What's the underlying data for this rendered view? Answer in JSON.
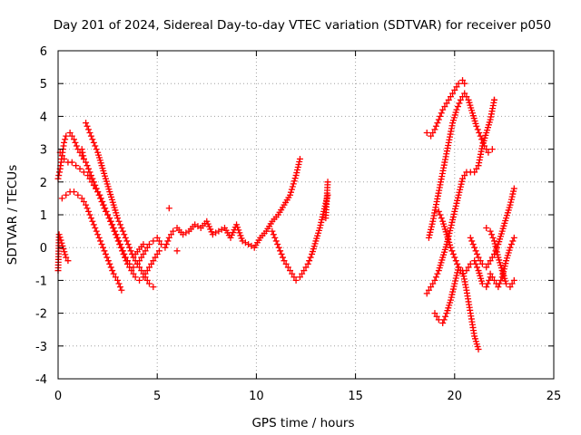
{
  "chart_data": {
    "type": "scatter",
    "title": "Day 201 of 2024, Sidereal Day-to-day VTEC variation (SDTVAR) for receiver p050",
    "xlabel": "GPS time / hours",
    "ylabel": "SDTVAR / TECUs",
    "xlim": [
      0,
      25
    ],
    "ylim": [
      -4,
      6
    ],
    "xticks": [
      "0",
      "5",
      "10",
      "15",
      "20",
      "25"
    ],
    "yticks": [
      "-4",
      "-3",
      "-2",
      "-1",
      "0",
      "1",
      "2",
      "3",
      "4",
      "5",
      "6"
    ],
    "grid": true,
    "marker": "+",
    "color": "#ff0000",
    "series": [
      {
        "name": "s1",
        "x": [
          0.0,
          0.1,
          0.2,
          0.3,
          0.4,
          0.6,
          0.8,
          1.0,
          1.2,
          1.4,
          1.6,
          1.8,
          2.0,
          2.2,
          2.4,
          2.6,
          2.8,
          3.0,
          3.2,
          3.4,
          3.6,
          3.8,
          4.0,
          4.2,
          4.4,
          4.6,
          4.8,
          5.0,
          5.2,
          5.4,
          5.6,
          5.8,
          6.0,
          6.3,
          6.6,
          6.9,
          7.2,
          7.5,
          7.8,
          8.1,
          8.4,
          8.7,
          9.0,
          9.3,
          9.6,
          9.9,
          10.2,
          10.5,
          10.8,
          11.1,
          11.4,
          11.7,
          12.0,
          12.2
        ],
        "y": [
          2.1,
          2.4,
          2.8,
          3.2,
          3.4,
          3.5,
          3.3,
          3.0,
          2.8,
          2.6,
          2.3,
          2.0,
          1.7,
          1.4,
          1.1,
          0.9,
          0.6,
          0.3,
          0.0,
          -0.3,
          -0.5,
          -0.6,
          -0.5,
          -0.3,
          -0.1,
          0.1,
          0.2,
          0.3,
          0.1,
          0.0,
          0.3,
          0.5,
          0.6,
          0.4,
          0.5,
          0.7,
          0.6,
          0.8,
          0.4,
          0.5,
          0.6,
          0.3,
          0.7,
          0.2,
          0.1,
          0.0,
          0.3,
          0.5,
          0.8,
          1.0,
          1.3,
          1.6,
          2.2,
          2.7
        ]
      },
      {
        "name": "s2",
        "x": [
          0.1,
          0.3,
          0.5,
          0.7,
          0.9,
          1.1,
          1.3,
          1.5,
          1.7,
          1.9,
          2.1,
          2.3,
          2.5,
          2.7,
          2.9,
          3.1,
          3.3,
          3.5,
          3.7,
          3.9,
          4.1,
          4.3,
          4.5,
          4.7,
          4.9,
          5.1
        ],
        "y": [
          2.9,
          2.7,
          2.6,
          2.6,
          2.5,
          2.4,
          2.3,
          2.2,
          2.0,
          1.8,
          1.6,
          1.3,
          1.0,
          0.7,
          0.4,
          0.1,
          -0.2,
          -0.5,
          -0.7,
          -0.9,
          -1.0,
          -0.9,
          -0.7,
          -0.5,
          -0.3,
          -0.1
        ]
      },
      {
        "name": "s3",
        "x": [
          0.2,
          0.4,
          0.6,
          0.8,
          1.0,
          1.2,
          1.4,
          1.6,
          1.8,
          2.0,
          2.2,
          2.4,
          2.6,
          2.8,
          3.0,
          3.2
        ],
        "y": [
          1.5,
          1.6,
          1.7,
          1.7,
          1.6,
          1.5,
          1.3,
          1.0,
          0.7,
          0.4,
          0.1,
          -0.2,
          -0.5,
          -0.8,
          -1.0,
          -1.3
        ]
      },
      {
        "name": "s4",
        "x": [
          1.4,
          1.6,
          1.8,
          2.0,
          2.2,
          2.4,
          2.6,
          2.8,
          3.0,
          3.2,
          3.4,
          3.6,
          3.8,
          4.0,
          4.2,
          4.4,
          4.6,
          4.8
        ],
        "y": [
          3.8,
          3.5,
          3.2,
          2.9,
          2.5,
          2.1,
          1.7,
          1.3,
          0.9,
          0.6,
          0.3,
          0.0,
          -0.3,
          -0.5,
          -0.7,
          -0.9,
          -1.1,
          -1.2
        ]
      },
      {
        "name": "s5",
        "x": [
          10.8,
          11.0,
          11.2,
          11.4,
          11.6,
          11.8,
          12.0,
          12.2,
          12.4,
          12.6,
          12.8,
          13.0,
          13.2,
          13.4,
          13.6
        ],
        "y": [
          0.5,
          0.2,
          -0.1,
          -0.4,
          -0.6,
          -0.8,
          -1.0,
          -0.9,
          -0.7,
          -0.5,
          -0.2,
          0.2,
          0.6,
          1.1,
          1.6
        ]
      },
      {
        "name": "s6",
        "x": [
          0.0,
          0.05,
          0.4,
          0.5,
          1.2,
          1.3,
          13.6,
          13.5,
          4.3,
          3.9,
          6.0,
          5.6
        ],
        "y": [
          -0.7,
          0.4,
          -0.3,
          -0.4,
          3.0,
          2.7,
          2.0,
          0.9,
          0.1,
          -0.2,
          -0.1,
          1.2
        ]
      },
      {
        "name": "s7",
        "x": [
          18.6,
          18.8,
          19.0,
          19.2,
          19.4,
          19.6,
          19.8,
          20.0,
          20.2,
          20.4,
          20.5
        ],
        "y": [
          3.5,
          3.4,
          3.6,
          3.9,
          4.2,
          4.4,
          4.6,
          4.8,
          5.0,
          5.1,
          5.0
        ]
      },
      {
        "name": "s8",
        "x": [
          18.7,
          18.9,
          19.1,
          19.3,
          19.5,
          19.7,
          19.9,
          20.1,
          20.3,
          20.5,
          20.7,
          20.9,
          21.1,
          21.3,
          21.5,
          21.7,
          21.9,
          22.0
        ],
        "y": [
          0.3,
          0.8,
          1.4,
          2.0,
          2.6,
          3.2,
          3.8,
          4.2,
          4.5,
          4.7,
          4.5,
          4.1,
          3.7,
          3.4,
          3.1,
          2.9,
          3.0,
          4.5
        ]
      },
      {
        "name": "s9",
        "x": [
          18.6,
          18.8,
          19.0,
          19.2,
          19.4,
          19.6,
          19.8,
          20.0,
          20.2,
          20.4,
          20.6,
          20.8,
          21.0,
          21.2,
          21.4,
          21.6,
          21.8,
          22.0
        ],
        "y": [
          -1.4,
          -1.2,
          -1.0,
          -0.7,
          -0.3,
          0.1,
          0.6,
          1.1,
          1.6,
          2.1,
          2.3,
          2.3,
          2.3,
          2.5,
          3.1,
          3.5,
          3.9,
          4.5
        ]
      },
      {
        "name": "s10",
        "x": [
          19.0,
          19.2,
          19.4,
          19.6,
          19.8,
          20.0,
          20.2,
          20.4,
          20.6,
          20.8,
          21.0,
          21.2
        ],
        "y": [
          -2.0,
          -2.2,
          -2.3,
          -2.0,
          -1.6,
          -1.1,
          -0.6,
          -0.7,
          -1.3,
          -2.0,
          -2.7,
          -3.1
        ]
      },
      {
        "name": "s11",
        "x": [
          19.2,
          19.4,
          19.6,
          19.8,
          20.0,
          20.2,
          20.4,
          20.6,
          20.8,
          21.0,
          21.2,
          21.4,
          21.6,
          21.8
        ],
        "y": [
          1.1,
          0.8,
          0.4,
          0.0,
          -0.3,
          -0.6,
          -0.8,
          -0.7,
          -0.5,
          -0.4,
          -0.7,
          -1.1,
          -1.2,
          -0.9
        ]
      },
      {
        "name": "s12",
        "x": [
          20.8,
          21.0,
          21.2,
          21.4,
          21.6,
          21.8,
          22.0,
          22.2,
          22.4,
          22.6,
          22.8,
          23.0
        ],
        "y": [
          0.3,
          0.0,
          -0.3,
          -0.5,
          -0.6,
          -0.4,
          -0.2,
          0.1,
          0.5,
          0.9,
          1.3,
          1.8
        ]
      },
      {
        "name": "s13",
        "x": [
          21.6,
          21.8,
          22.0,
          22.2,
          22.4,
          22.6,
          22.8,
          23.0
        ],
        "y": [
          0.6,
          0.5,
          0.2,
          -0.3,
          -0.7,
          -1.1,
          -1.2,
          -1.0
        ]
      },
      {
        "name": "s14",
        "x": [
          21.8,
          22.0,
          22.2,
          22.4,
          22.6,
          22.8,
          23.0
        ],
        "y": [
          -0.8,
          -1.0,
          -1.2,
          -0.9,
          -0.4,
          0.0,
          0.3
        ]
      }
    ]
  }
}
